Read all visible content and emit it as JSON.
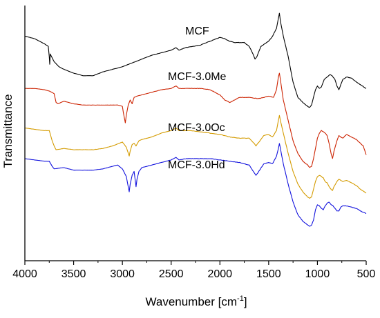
{
  "chart_data": {
    "type": "line",
    "xlabel": "Wavenumber [cm",
    "xlabel_sup": "-1",
    "xlabel_end": "]",
    "ylabel": "Transmittance",
    "xlim": [
      4000,
      500
    ],
    "x_reversed": true,
    "x_ticks": [
      "4000",
      "3500",
      "3000",
      "2500",
      "2000",
      "1500",
      "1000",
      "500"
    ],
    "y_ticks": false,
    "y_units": "arbitrary transmittance, offset per series (0 = bottom of plot, 100 = top)",
    "ylim": [
      0,
      100
    ],
    "grid": false,
    "series": [
      {
        "name": "MCF",
        "color": "#000000",
        "points": [
          [
            4000,
            88
          ],
          [
            3900,
            87
          ],
          [
            3800,
            85
          ],
          [
            3760,
            84
          ],
          [
            3750,
            80
          ],
          [
            3745,
            77
          ],
          [
            3740,
            81
          ],
          [
            3700,
            78
          ],
          [
            3650,
            76
          ],
          [
            3600,
            75
          ],
          [
            3500,
            73.5
          ],
          [
            3400,
            72.5
          ],
          [
            3300,
            72.5
          ],
          [
            3200,
            74
          ],
          [
            3100,
            75
          ],
          [
            3000,
            76
          ],
          [
            2900,
            77.5
          ],
          [
            2800,
            79
          ],
          [
            2700,
            80.5
          ],
          [
            2600,
            81.5
          ],
          [
            2500,
            82.5
          ],
          [
            2450,
            83.5
          ],
          [
            2420,
            82.5
          ],
          [
            2350,
            83.5
          ],
          [
            2200,
            84.5
          ],
          [
            2100,
            86
          ],
          [
            2000,
            87.5
          ],
          [
            1950,
            87
          ],
          [
            1900,
            86
          ],
          [
            1850,
            85.5
          ],
          [
            1800,
            85.5
          ],
          [
            1750,
            85.5
          ],
          [
            1700,
            84
          ],
          [
            1660,
            81
          ],
          [
            1640,
            79
          ],
          [
            1620,
            80
          ],
          [
            1580,
            84
          ],
          [
            1540,
            85
          ],
          [
            1500,
            86
          ],
          [
            1460,
            88
          ],
          [
            1420,
            91
          ],
          [
            1400,
            95
          ],
          [
            1390,
            97
          ],
          [
            1380,
            94
          ],
          [
            1350,
            88
          ],
          [
            1300,
            80
          ],
          [
            1250,
            70
          ],
          [
            1200,
            64
          ],
          [
            1150,
            62
          ],
          [
            1100,
            60.5
          ],
          [
            1080,
            60
          ],
          [
            1060,
            61
          ],
          [
            1040,
            64
          ],
          [
            1020,
            67
          ],
          [
            1000,
            68.5
          ],
          [
            980,
            67.5
          ],
          [
            960,
            68
          ],
          [
            930,
            71
          ],
          [
            900,
            72
          ],
          [
            870,
            73
          ],
          [
            850,
            72.5
          ],
          [
            820,
            71
          ],
          [
            800,
            68.5
          ],
          [
            780,
            67
          ],
          [
            760,
            69
          ],
          [
            740,
            71
          ],
          [
            700,
            72
          ],
          [
            650,
            71.5
          ],
          [
            600,
            70
          ],
          [
            560,
            69
          ],
          [
            500,
            67.5
          ]
        ]
      },
      {
        "name": "MCF-3.0Me",
        "color": "#cc2200",
        "points": [
          [
            4000,
            67.5
          ],
          [
            3900,
            67.5
          ],
          [
            3800,
            67
          ],
          [
            3750,
            66.5
          ],
          [
            3700,
            65.5
          ],
          [
            3680,
            62
          ],
          [
            3660,
            61.5
          ],
          [
            3600,
            62.5
          ],
          [
            3500,
            61.5
          ],
          [
            3400,
            61
          ],
          [
            3300,
            61
          ],
          [
            3200,
            61
          ],
          [
            3100,
            61
          ],
          [
            3050,
            61
          ],
          [
            3000,
            60.5
          ],
          [
            2990,
            58
          ],
          [
            2970,
            54
          ],
          [
            2960,
            57
          ],
          [
            2940,
            61
          ],
          [
            2920,
            63
          ],
          [
            2900,
            61.5
          ],
          [
            2880,
            64
          ],
          [
            2850,
            64.5
          ],
          [
            2800,
            65
          ],
          [
            2700,
            66
          ],
          [
            2600,
            67
          ],
          [
            2500,
            67.5
          ],
          [
            2450,
            68.5
          ],
          [
            2420,
            67.5
          ],
          [
            2300,
            67.5
          ],
          [
            2200,
            67.5
          ],
          [
            2100,
            67
          ],
          [
            2000,
            65
          ],
          [
            1950,
            63
          ],
          [
            1900,
            62
          ],
          [
            1850,
            63
          ],
          [
            1800,
            64
          ],
          [
            1700,
            64
          ],
          [
            1600,
            63.5
          ],
          [
            1500,
            64.5
          ],
          [
            1450,
            64
          ],
          [
            1420,
            67
          ],
          [
            1400,
            72
          ],
          [
            1390,
            73.5
          ],
          [
            1380,
            71
          ],
          [
            1350,
            63
          ],
          [
            1300,
            55
          ],
          [
            1250,
            47
          ],
          [
            1200,
            42
          ],
          [
            1150,
            39
          ],
          [
            1100,
            37.5
          ],
          [
            1080,
            36.5
          ],
          [
            1060,
            37
          ],
          [
            1040,
            40
          ],
          [
            1020,
            44
          ],
          [
            1000,
            48
          ],
          [
            980,
            50
          ],
          [
            960,
            51
          ],
          [
            940,
            50.5
          ],
          [
            920,
            50
          ],
          [
            900,
            49
          ],
          [
            880,
            46
          ],
          [
            860,
            42
          ],
          [
            845,
            40
          ],
          [
            830,
            43
          ],
          [
            800,
            47
          ],
          [
            780,
            49
          ],
          [
            760,
            48.5
          ],
          [
            740,
            48
          ],
          [
            700,
            49.5
          ],
          [
            650,
            48.5
          ],
          [
            600,
            47.5
          ],
          [
            560,
            46
          ],
          [
            530,
            45
          ],
          [
            500,
            41.5
          ]
        ]
      },
      {
        "name": "MCF-3.0Oc",
        "color": "#d49b00",
        "points": [
          [
            4000,
            52
          ],
          [
            3900,
            51.5
          ],
          [
            3800,
            51
          ],
          [
            3750,
            51
          ],
          [
            3720,
            47
          ],
          [
            3700,
            45
          ],
          [
            3680,
            43.5
          ],
          [
            3600,
            44
          ],
          [
            3500,
            43.5
          ],
          [
            3400,
            43.5
          ],
          [
            3300,
            43.5
          ],
          [
            3200,
            44
          ],
          [
            3100,
            45
          ],
          [
            3000,
            46.5
          ],
          [
            2960,
            44.5
          ],
          [
            2930,
            41
          ],
          [
            2920,
            43
          ],
          [
            2900,
            45.5
          ],
          [
            2880,
            46
          ],
          [
            2860,
            45
          ],
          [
            2830,
            47
          ],
          [
            2800,
            47.5
          ],
          [
            2700,
            48.5
          ],
          [
            2600,
            50
          ],
          [
            2500,
            51
          ],
          [
            2450,
            52
          ],
          [
            2420,
            51
          ],
          [
            2300,
            51
          ],
          [
            2200,
            50.5
          ],
          [
            2100,
            50
          ],
          [
            2000,
            49.5
          ],
          [
            1900,
            48.5
          ],
          [
            1800,
            48
          ],
          [
            1700,
            48
          ],
          [
            1650,
            46
          ],
          [
            1630,
            45
          ],
          [
            1610,
            46
          ],
          [
            1550,
            49
          ],
          [
            1500,
            49.5
          ],
          [
            1460,
            48.5
          ],
          [
            1420,
            51
          ],
          [
            1400,
            55
          ],
          [
            1390,
            57
          ],
          [
            1380,
            55
          ],
          [
            1350,
            50
          ],
          [
            1300,
            42
          ],
          [
            1250,
            35
          ],
          [
            1200,
            30
          ],
          [
            1150,
            27
          ],
          [
            1100,
            25
          ],
          [
            1080,
            24.5
          ],
          [
            1060,
            25
          ],
          [
            1040,
            28
          ],
          [
            1020,
            31
          ],
          [
            1000,
            33
          ],
          [
            980,
            33.5
          ],
          [
            960,
            33
          ],
          [
            940,
            32.5
          ],
          [
            920,
            31
          ],
          [
            900,
            30.5
          ],
          [
            880,
            29
          ],
          [
            860,
            28
          ],
          [
            845,
            27.5
          ],
          [
            830,
            29
          ],
          [
            800,
            31
          ],
          [
            780,
            32
          ],
          [
            760,
            31.5
          ],
          [
            740,
            31
          ],
          [
            700,
            31.5
          ],
          [
            650,
            30.5
          ],
          [
            600,
            29.5
          ],
          [
            560,
            28
          ],
          [
            500,
            26.5
          ]
        ]
      },
      {
        "name": "MCF-3.0Hd",
        "color": "#1111dd",
        "points": [
          [
            4000,
            40
          ],
          [
            3900,
            39.5
          ],
          [
            3800,
            39
          ],
          [
            3750,
            39
          ],
          [
            3720,
            37
          ],
          [
            3700,
            36
          ],
          [
            3600,
            36.5
          ],
          [
            3500,
            35.5
          ],
          [
            3400,
            35.5
          ],
          [
            3300,
            35.5
          ],
          [
            3200,
            36
          ],
          [
            3100,
            37
          ],
          [
            3050,
            37.5
          ],
          [
            3000,
            36
          ],
          [
            2960,
            33
          ],
          [
            2930,
            27
          ],
          [
            2920,
            30
          ],
          [
            2900,
            33.5
          ],
          [
            2880,
            35
          ],
          [
            2860,
            29
          ],
          [
            2850,
            32
          ],
          [
            2830,
            35
          ],
          [
            2800,
            36.5
          ],
          [
            2700,
            37.5
          ],
          [
            2600,
            38.5
          ],
          [
            2500,
            39.5
          ],
          [
            2450,
            40.5
          ],
          [
            2420,
            39.5
          ],
          [
            2350,
            40
          ],
          [
            2200,
            40
          ],
          [
            2100,
            40
          ],
          [
            2000,
            39.5
          ],
          [
            1900,
            39
          ],
          [
            1800,
            38.5
          ],
          [
            1700,
            37.5
          ],
          [
            1650,
            34.5
          ],
          [
            1630,
            33.5
          ],
          [
            1610,
            34.5
          ],
          [
            1550,
            38
          ],
          [
            1500,
            38.5
          ],
          [
            1460,
            38
          ],
          [
            1420,
            41
          ],
          [
            1400,
            44
          ],
          [
            1390,
            46
          ],
          [
            1380,
            44
          ],
          [
            1350,
            38
          ],
          [
            1300,
            30
          ],
          [
            1250,
            23
          ],
          [
            1200,
            18
          ],
          [
            1150,
            15.5
          ],
          [
            1100,
            14
          ],
          [
            1080,
            13.5
          ],
          [
            1060,
            14
          ],
          [
            1040,
            16
          ],
          [
            1020,
            20
          ],
          [
            1000,
            22
          ],
          [
            980,
            21.5
          ],
          [
            960,
            20.5
          ],
          [
            940,
            20
          ],
          [
            920,
            21.5
          ],
          [
            900,
            22.5
          ],
          [
            880,
            23
          ],
          [
            860,
            22
          ],
          [
            840,
            21.5
          ],
          [
            820,
            20.5
          ],
          [
            800,
            19.5
          ],
          [
            780,
            19.5
          ],
          [
            760,
            21
          ],
          [
            740,
            21.5
          ],
          [
            700,
            21.5
          ],
          [
            650,
            21
          ],
          [
            600,
            20.5
          ],
          [
            560,
            19.5
          ],
          [
            500,
            18.5
          ]
        ]
      }
    ]
  }
}
